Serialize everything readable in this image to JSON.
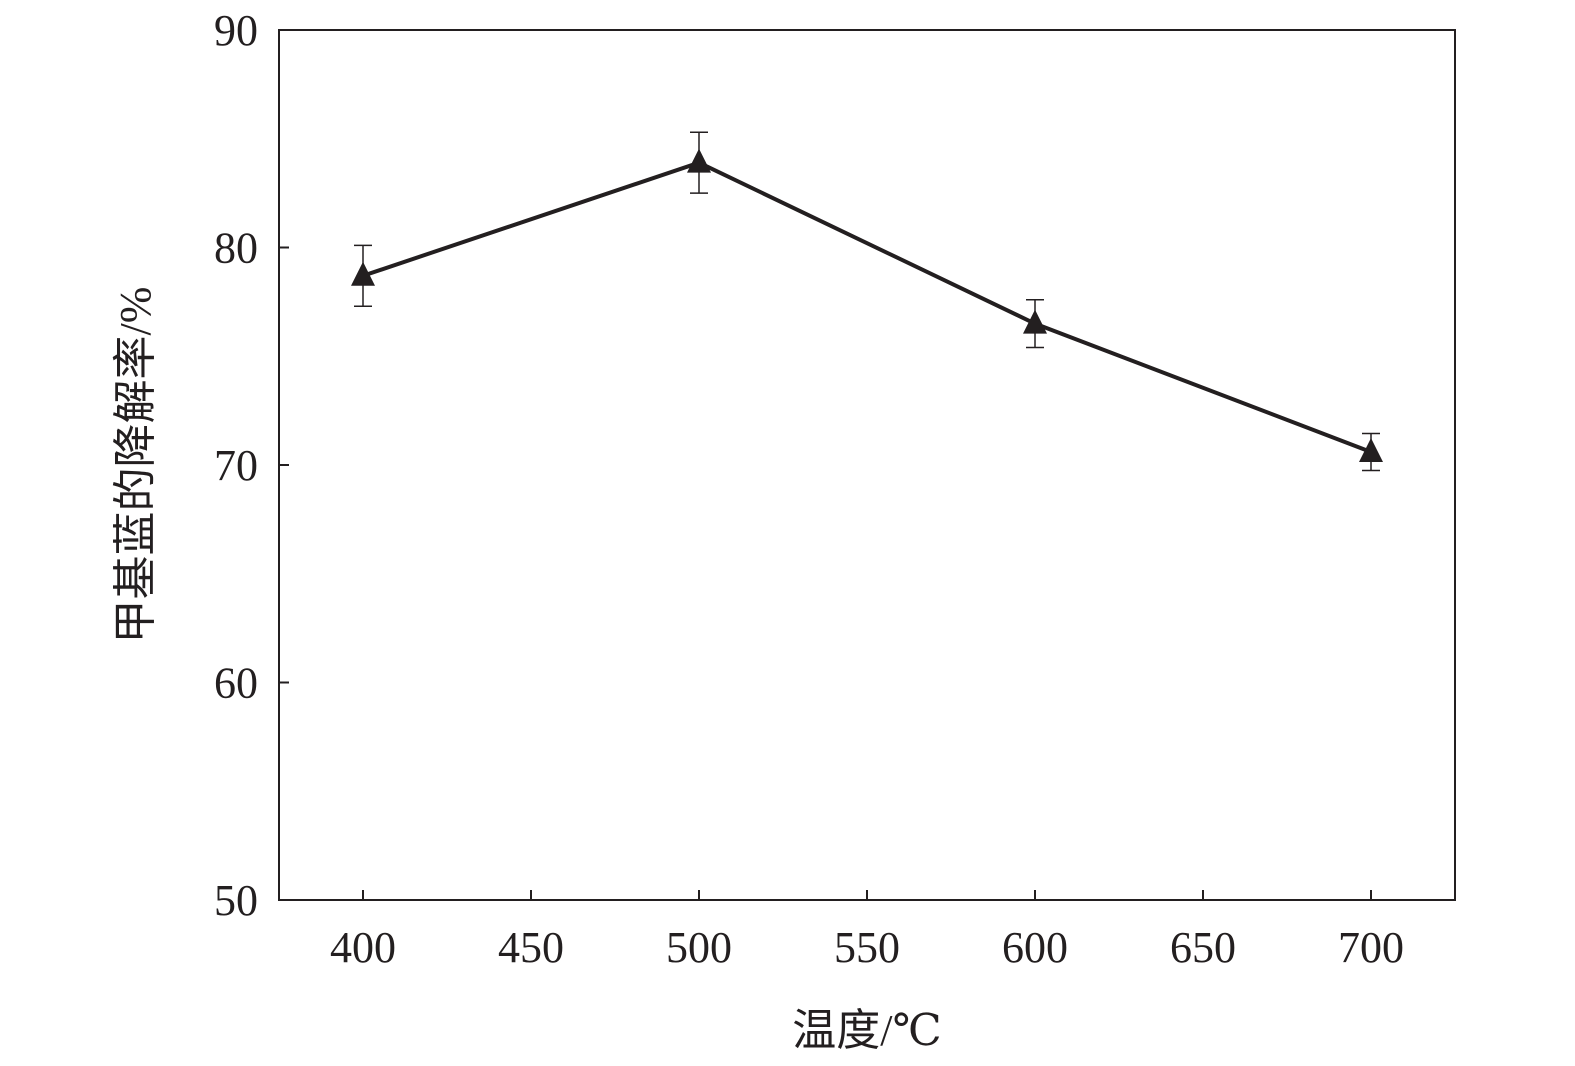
{
  "chart_data": {
    "type": "line",
    "title": "",
    "xlabel": "温度/℃",
    "ylabel": "甲基蓝的降解率/%",
    "xlim": [
      375,
      725
    ],
    "ylim": [
      50,
      90
    ],
    "xticks": [
      400,
      450,
      500,
      550,
      600,
      650,
      700
    ],
    "yticks": [
      50,
      60,
      70,
      80,
      90
    ],
    "grid": false,
    "marker": "filled-triangle",
    "color": "#231f20",
    "series": [
      {
        "x": [
          400,
          500,
          600,
          700
        ],
        "y": [
          78.7,
          83.9,
          76.5,
          70.6
        ],
        "error": [
          1.4,
          1.4,
          1.1,
          0.85
        ]
      }
    ]
  }
}
